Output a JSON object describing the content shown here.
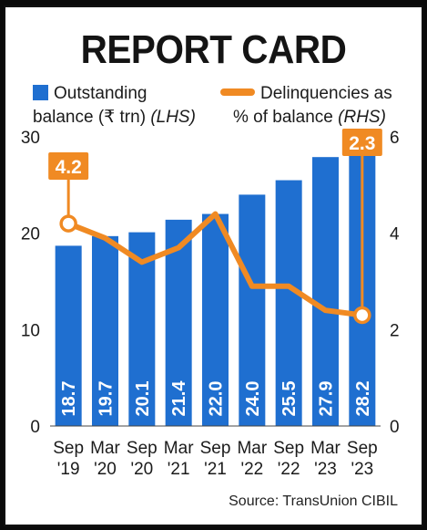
{
  "title": "REPORT CARD",
  "legend": {
    "bar_label_line1": "Outstanding",
    "bar_label_line2": "balance (₹ trn)",
    "bar_axis_tag": "(LHS)",
    "line_label_line1": "Delinquencies as",
    "line_label_line2": "% of balance",
    "line_axis_tag": "(RHS)"
  },
  "source": "Source: TransUnion CIBIL",
  "colors": {
    "bar": "#1f6fd0",
    "line": "#f08a23",
    "bar_label": "#ffffff",
    "callout_text": "#ffffff"
  },
  "chart_data": {
    "type": "bar",
    "categories": [
      [
        "Sep",
        "'19"
      ],
      [
        "Mar",
        "'20"
      ],
      [
        "Sep",
        "'20"
      ],
      [
        "Mar",
        "'21"
      ],
      [
        "Sep",
        "'21"
      ],
      [
        "Mar",
        "'22"
      ],
      [
        "Sep",
        "'22"
      ],
      [
        "Mar",
        "'23"
      ],
      [
        "Sep",
        "'23"
      ]
    ],
    "series": [
      {
        "name": "Outstanding balance (₹ trn)",
        "type": "bar",
        "axis": "left",
        "values": [
          18.7,
          19.7,
          20.1,
          21.4,
          22.0,
          24.0,
          25.5,
          27.9,
          28.2
        ],
        "labels": [
          "18.7",
          "19.7",
          "20.1",
          "21.4",
          "22.0",
          "24.0",
          "25.5",
          "27.9",
          "28.2"
        ]
      },
      {
        "name": "Delinquencies as % of balance",
        "type": "line",
        "axis": "right",
        "values": [
          4.2,
          3.9,
          3.4,
          3.7,
          4.4,
          2.9,
          2.9,
          2.4,
          2.3
        ]
      }
    ],
    "callouts": [
      {
        "index": 0,
        "label": "4.2"
      },
      {
        "index": 8,
        "label": "2.3"
      }
    ],
    "y_left": {
      "min": 0,
      "max": 30,
      "ticks": [
        "0",
        "10",
        "20",
        "30"
      ]
    },
    "y_right": {
      "min": 0,
      "max": 6,
      "ticks": [
        "0",
        "2",
        "4",
        "6"
      ]
    },
    "grid": false,
    "legend_position": "top"
  }
}
